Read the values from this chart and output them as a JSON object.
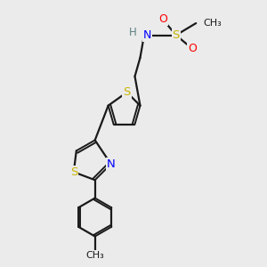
{
  "background_color": "#ebebeb",
  "bond_color": "#1a1a1a",
  "S_color": "#c8b400",
  "N_color": "#0000ff",
  "O_color": "#ff0000",
  "H_color": "#608080",
  "figsize": [
    3.0,
    3.0
  ],
  "dpi": 100,
  "xlim": [
    0,
    10
  ],
  "ylim": [
    0,
    10
  ]
}
